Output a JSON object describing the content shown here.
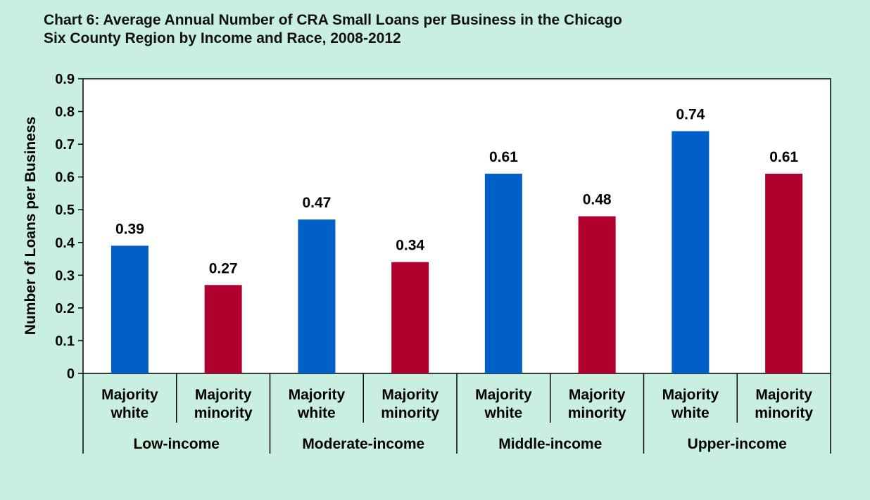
{
  "chart_data": {
    "type": "bar",
    "title_line1": "Chart 6: Average Annual Number of CRA Small Loans per Business in the Chicago",
    "title_line2": "Six County Region by Income and Race, 2008-2012",
    "ylabel": "Number of Loans per Business",
    "xlabel": "",
    "ylim": [
      0,
      0.9
    ],
    "y_ticks": [
      "0",
      "0.1",
      "0.2",
      "0.3",
      "0.4",
      "0.5",
      "0.6",
      "0.7",
      "0.8",
      "0.9"
    ],
    "groups": [
      "Low-income",
      "Moderate-income",
      "Middle-income",
      "Upper-income"
    ],
    "categories": [
      {
        "group": "Low-income",
        "line1": "Majority",
        "line2": "white",
        "value": 0.39,
        "label": "0.39",
        "race": "white"
      },
      {
        "group": "Low-income",
        "line1": "Majority",
        "line2": "minority",
        "value": 0.27,
        "label": "0.27",
        "race": "minority"
      },
      {
        "group": "Moderate-income",
        "line1": "Majority",
        "line2": "white",
        "value": 0.47,
        "label": "0.47",
        "race": "white"
      },
      {
        "group": "Moderate-income",
        "line1": "Majority",
        "line2": "minority",
        "value": 0.34,
        "label": "0.34",
        "race": "minority"
      },
      {
        "group": "Middle-income",
        "line1": "Majority",
        "line2": "white",
        "value": 0.61,
        "label": "0.61",
        "race": "white"
      },
      {
        "group": "Middle-income",
        "line1": "Majority",
        "line2": "minority",
        "value": 0.48,
        "label": "0.48",
        "race": "minority"
      },
      {
        "group": "Upper-income",
        "line1": "Majority",
        "line2": "white",
        "value": 0.74,
        "label": "0.74",
        "race": "white"
      },
      {
        "group": "Upper-income",
        "line1": "Majority",
        "line2": "minority",
        "value": 0.61,
        "label": "0.61",
        "race": "minority"
      }
    ],
    "colors": {
      "white": "#0060c8",
      "minority": "#b0002e"
    },
    "grid": false,
    "legend": "none"
  }
}
